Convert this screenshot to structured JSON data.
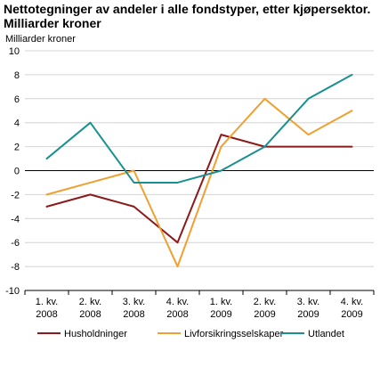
{
  "header": {
    "title_line1": "Nettotegninger av andeler i alle fondstyper, etter kjøpersektor.",
    "title_line2": "Milliarder kroner"
  },
  "chart_data": {
    "type": "line",
    "title": "Nettotegninger av andeler i alle fondstyper, etter kjøpersektor. Milliarder kroner",
    "ylabel": "Milliarder kroner",
    "xlabel": "",
    "categories": [
      [
        "1. kv.",
        "2008"
      ],
      [
        "2. kv.",
        "2008"
      ],
      [
        "3. kv.",
        "2008"
      ],
      [
        "4. kv.",
        "2008"
      ],
      [
        "1. kv.",
        "2009"
      ],
      [
        "2. kv.",
        "2009"
      ],
      [
        "3. kv.",
        "2009"
      ],
      [
        "4. kv.",
        "2009"
      ]
    ],
    "yticks": [
      10,
      8,
      6,
      4,
      2,
      0,
      -2,
      -4,
      -6,
      -8,
      -10
    ],
    "ylim": [
      -10,
      10
    ],
    "grid": true,
    "legend_position": "bottom",
    "series": [
      {
        "name": "Husholdninger",
        "color": "#8b1a1a",
        "values": [
          -3,
          -2,
          -3,
          -6,
          3,
          2,
          2,
          2
        ]
      },
      {
        "name": "Livforsikringsselskaper",
        "color": "#f0a030",
        "values": [
          -2,
          -1,
          0,
          -8,
          2,
          6,
          3,
          5
        ]
      },
      {
        "name": "Utlandet",
        "color": "#1a9090",
        "values": [
          1,
          4,
          -1,
          -1,
          0,
          2,
          6,
          8
        ]
      }
    ]
  }
}
